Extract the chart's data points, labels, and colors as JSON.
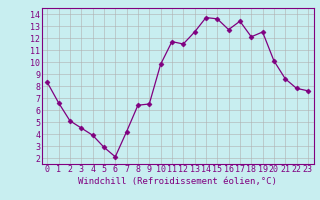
{
  "x": [
    0,
    1,
    2,
    3,
    4,
    5,
    6,
    7,
    8,
    9,
    10,
    11,
    12,
    13,
    14,
    15,
    16,
    17,
    18,
    19,
    20,
    21,
    22,
    23
  ],
  "y": [
    8.3,
    6.6,
    5.1,
    4.5,
    3.9,
    2.9,
    2.1,
    4.2,
    6.4,
    6.5,
    9.8,
    11.7,
    11.5,
    12.5,
    13.7,
    13.6,
    12.7,
    13.4,
    12.1,
    12.5,
    10.1,
    8.6,
    7.8,
    7.6
  ],
  "line_color": "#800080",
  "marker": "D",
  "marker_size": 2.5,
  "bg_color": "#c8eef0",
  "grid_color": "#b0b0b0",
  "xlabel": "Windchill (Refroidissement éolien,°C)",
  "xlim": [
    -0.5,
    23.5
  ],
  "ylim": [
    1.5,
    14.5
  ],
  "yticks": [
    2,
    3,
    4,
    5,
    6,
    7,
    8,
    9,
    10,
    11,
    12,
    13,
    14
  ],
  "xticks": [
    0,
    1,
    2,
    3,
    4,
    5,
    6,
    7,
    8,
    9,
    10,
    11,
    12,
    13,
    14,
    15,
    16,
    17,
    18,
    19,
    20,
    21,
    22,
    23
  ],
  "tick_label_color": "#800080",
  "axis_color": "#800080",
  "xlabel_color": "#800080",
  "xlabel_fontsize": 6.5,
  "tick_fontsize": 6.0
}
